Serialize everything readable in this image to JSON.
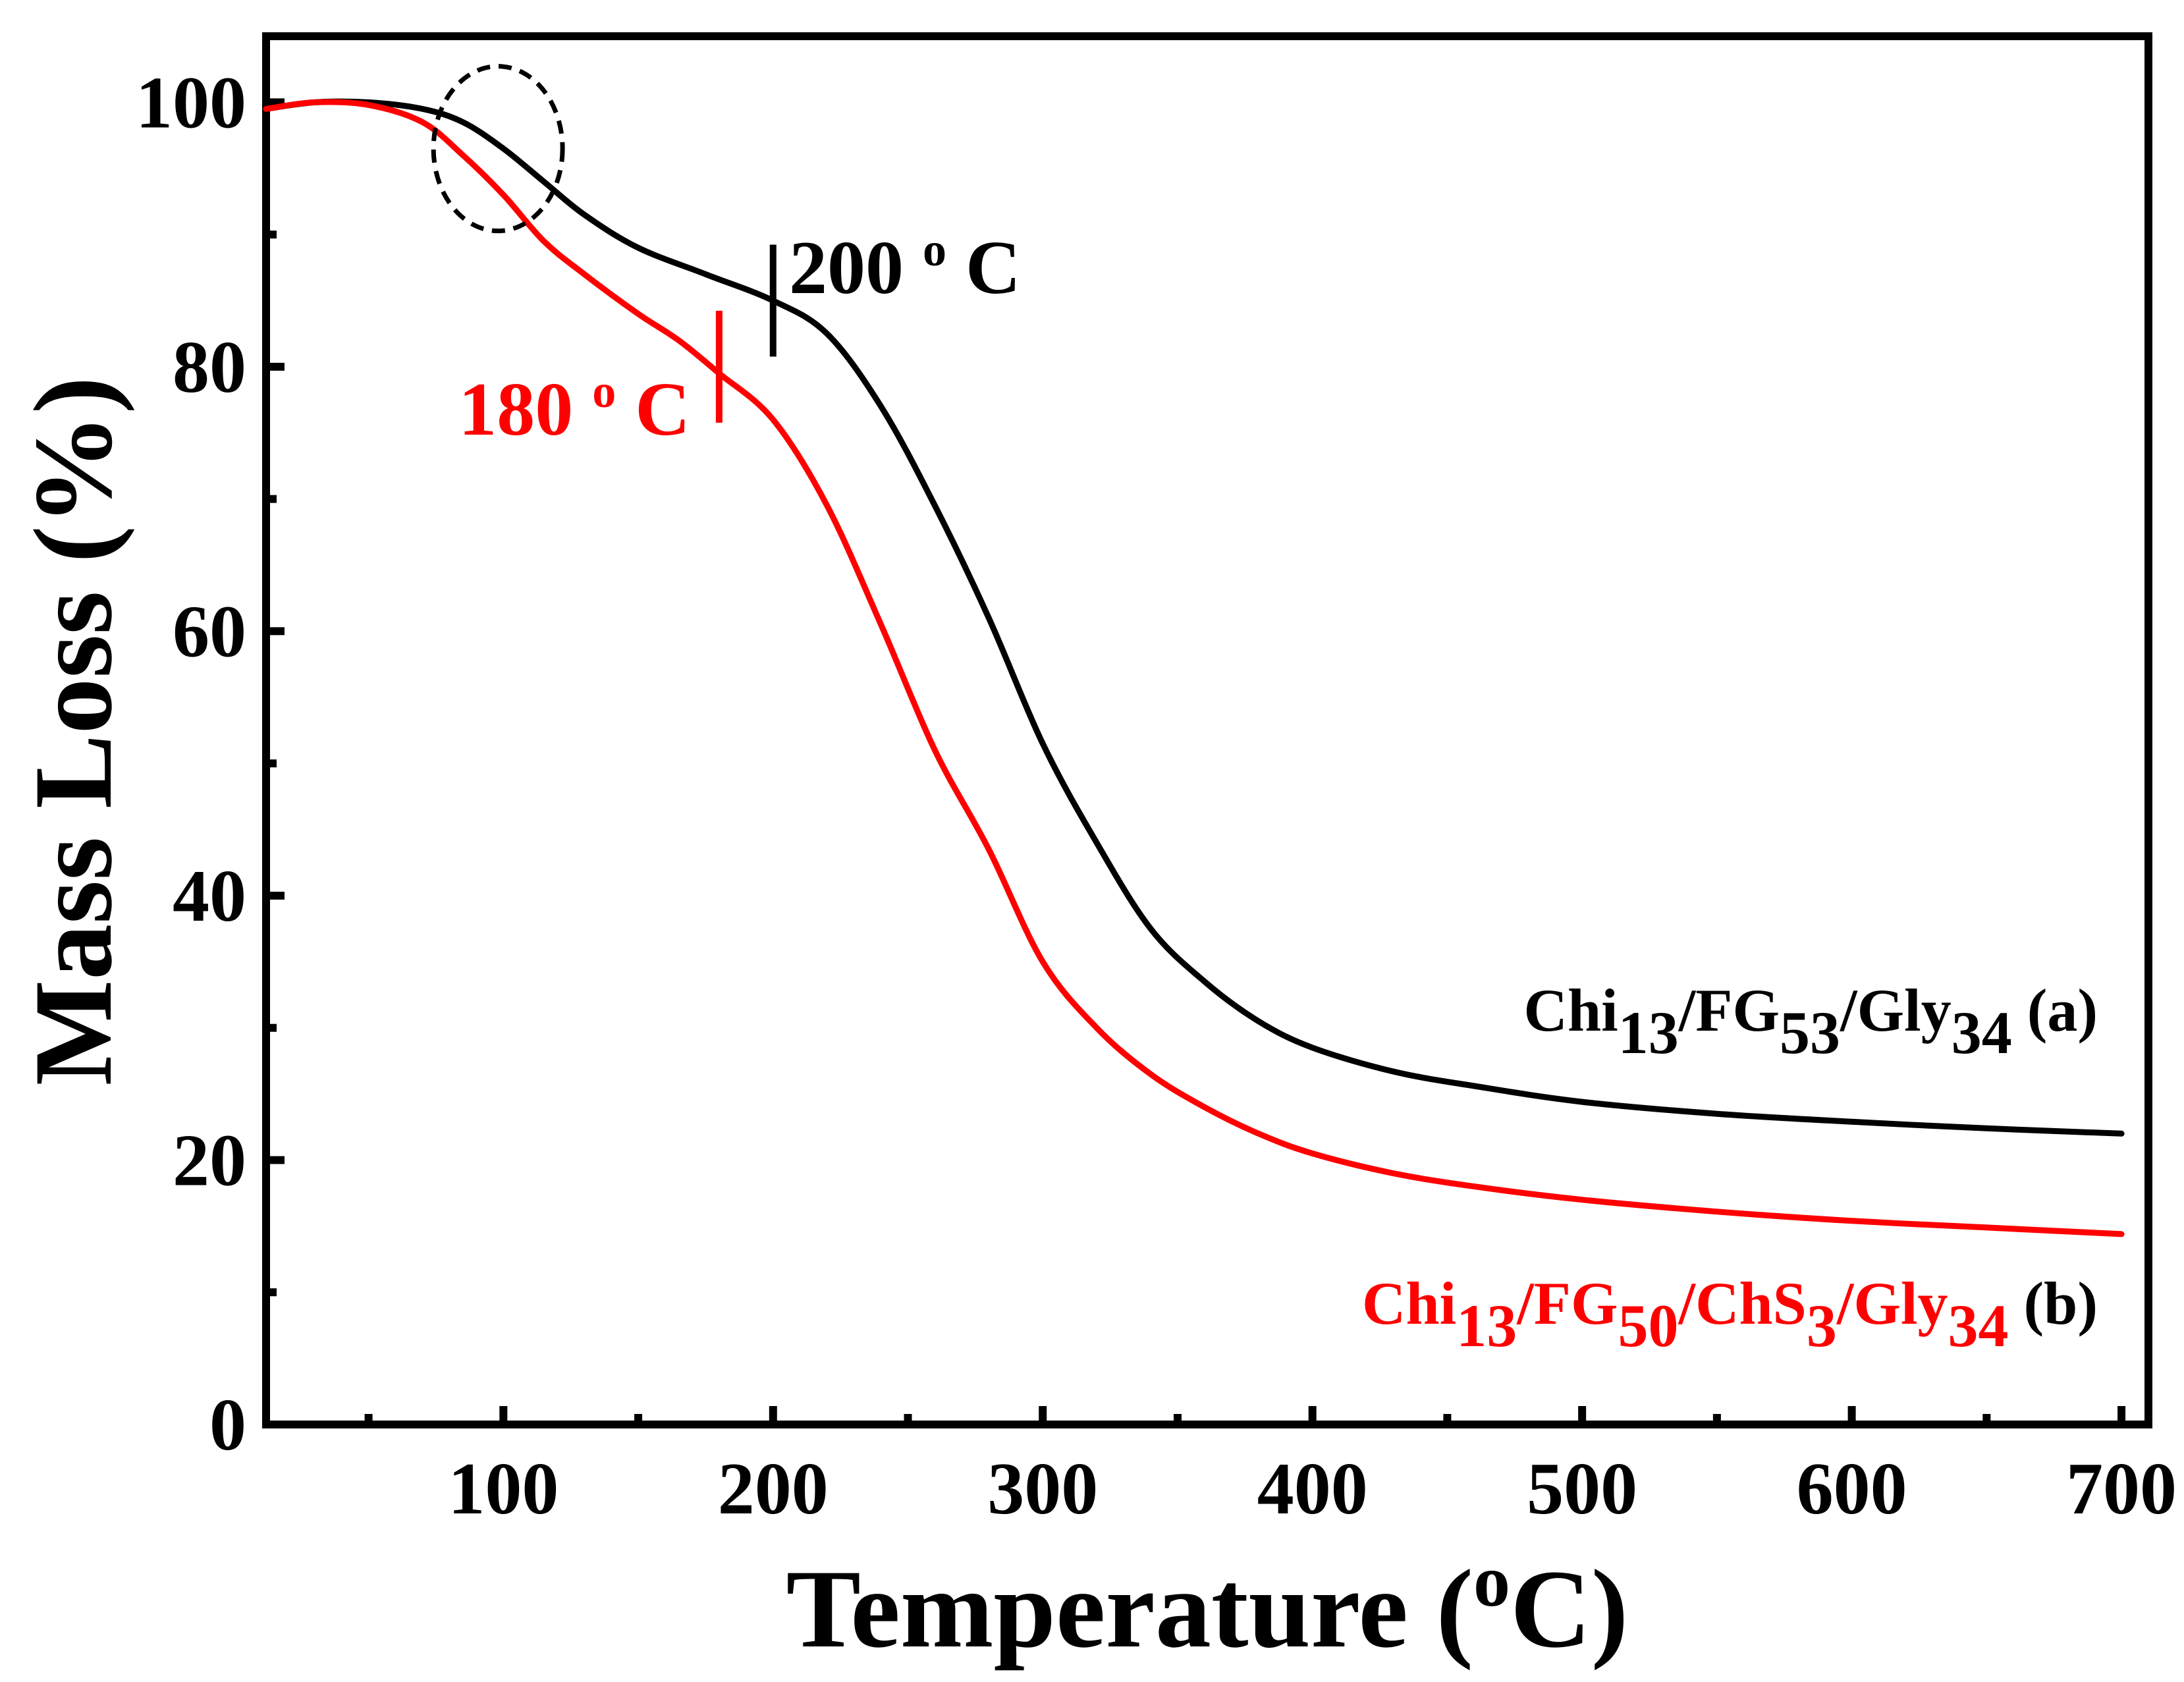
{
  "chart_data": {
    "type": "line",
    "xlabel": {
      "main": "Temperature (",
      "sup": "o",
      "tail": "C)"
    },
    "ylabel": "Mass Loss (%)",
    "xlim": [
      12,
      710
    ],
    "ylim": [
      0,
      105
    ],
    "xticks": [
      100,
      200,
      300,
      400,
      500,
      600,
      700
    ],
    "yticks": [
      0,
      20,
      40,
      60,
      80,
      100
    ],
    "x_minor_ticks": [
      50,
      150,
      250,
      350,
      450,
      550,
      650
    ],
    "y_minor_ticks": [
      10,
      30,
      50,
      70,
      90
    ],
    "series": [
      {
        "key": "a",
        "color": "#000000",
        "label_parts": [
          {
            "t": "Chi"
          },
          {
            "t": "13",
            "sub": true
          },
          {
            "t": "/FG"
          },
          {
            "t": "53",
            "sub": true
          },
          {
            "t": "/Gly"
          },
          {
            "t": "34",
            "sub": true
          },
          {
            "t": " (a)"
          }
        ],
        "x": [
          12,
          30,
          50,
          70,
          85,
          100,
          115,
          130,
          150,
          175,
          200,
          220,
          240,
          260,
          280,
          300,
          320,
          340,
          360,
          380,
          400,
          430,
          460,
          500,
          550,
          600,
          650,
          700
        ],
        "y": [
          99.5,
          100,
          100,
          99.5,
          98.5,
          96.5,
          94,
          91.5,
          89,
          87,
          85,
          82.5,
          77,
          69.5,
          61,
          51.5,
          44,
          37.5,
          33.5,
          30.5,
          28.5,
          26.7,
          25.6,
          24.4,
          23.5,
          22.9,
          22.4,
          22
        ]
      },
      {
        "key": "b",
        "color": "#ff0000",
        "label_parts": [
          {
            "t": "Chi"
          },
          {
            "t": "13",
            "sub": true
          },
          {
            "t": "/FG"
          },
          {
            "t": "50",
            "sub": true
          },
          {
            "t": "/ChS"
          },
          {
            "t": "3",
            "sub": true
          },
          {
            "t": "/Gly"
          },
          {
            "t": "34",
            "sub": true
          },
          {
            "t": " (b)",
            "black": true
          }
        ],
        "x": [
          12,
          30,
          50,
          70,
          85,
          100,
          115,
          130,
          150,
          165,
          180,
          200,
          220,
          240,
          260,
          280,
          300,
          320,
          340,
          360,
          380,
          400,
          430,
          460,
          500,
          550,
          600,
          650,
          700
        ],
        "y": [
          99.5,
          100,
          99.8,
          98.5,
          96,
          93,
          89.5,
          87,
          84,
          82,
          79.5,
          76,
          69.5,
          60.5,
          51,
          43.5,
          35,
          30,
          26.5,
          24,
          22,
          20.5,
          19,
          18,
          17,
          16.1,
          15.4,
          14.9,
          14.4
        ]
      }
    ],
    "annotations": [
      {
        "key": "onset-a",
        "x": 200,
        "y": 85,
        "text": "200",
        "sup": "o",
        "unit": "C",
        "color": "#000000"
      },
      {
        "key": "onset-b",
        "x": 180,
        "y": 80,
        "text": "180",
        "sup": "o",
        "unit": "C",
        "color": "#ff0000"
      }
    ],
    "highlight": {
      "x": 98,
      "y": 96.5,
      "style": "dashed-circle"
    },
    "grid": false,
    "legend": "inline-right"
  }
}
